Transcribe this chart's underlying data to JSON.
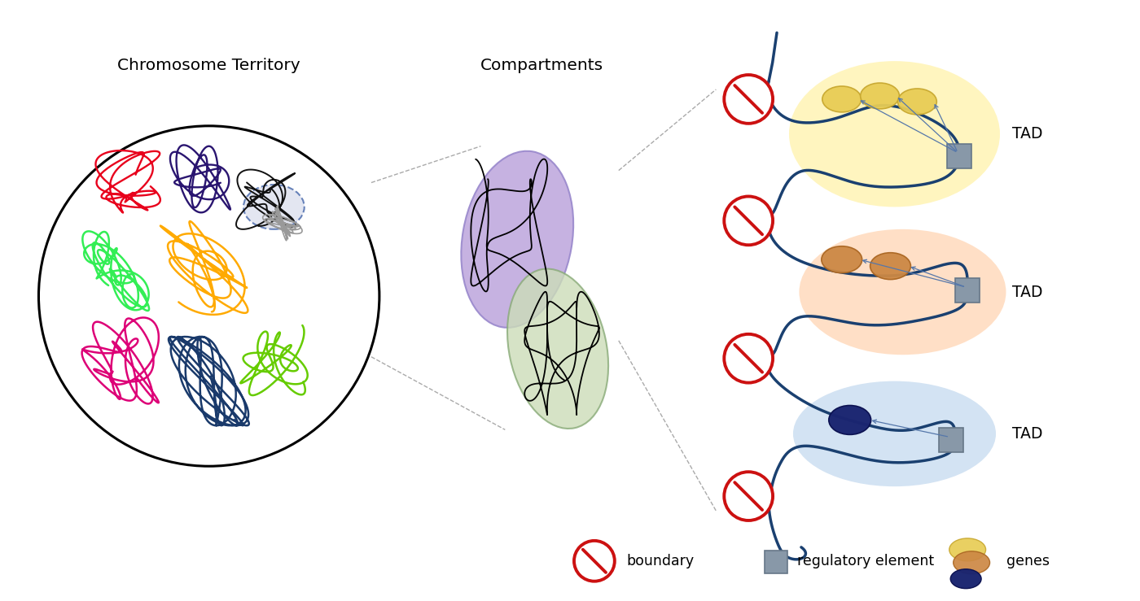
{
  "bg_color": "#ffffff",
  "chromosome_territory_label": "Chromosome Territory",
  "compartments_label": "Compartments",
  "tad_label": "TAD",
  "boundary_label": "boundary",
  "regulatory_label": "regulatory element",
  "genes_label": "genes",
  "colors": {
    "red_chrom": "#e8001c",
    "dark_purple": "#2a1a7a",
    "bright_green": "#33dd55",
    "orange_yellow": "#ffaa00",
    "magenta": "#dd0077",
    "dark_navy": "#1a3a6b",
    "lime_green": "#66cc00",
    "compartment1_bg": "#c0aade",
    "compartment2_bg": "#ccddb8",
    "tad1_bg": "#fff3b0",
    "tad2_bg": "#ffd8b8",
    "tad3_bg": "#c8dcf0",
    "dna_blue": "#1a4070",
    "boundary_red": "#cc1111",
    "reg_gray_face": "#8898a8",
    "reg_gray_edge": "#667788",
    "gene_yellow_face": "#e8cc55",
    "gene_yellow_edge": "#c8a830",
    "gene_orange_face": "#cc8844",
    "gene_orange_edge": "#aa6622",
    "gene_darkblue_face": "#1a2570",
    "gene_darkblue_edge": "#0a1050",
    "arrow_color": "#5577aa",
    "dashed_line_color": "#aaaaaa"
  }
}
